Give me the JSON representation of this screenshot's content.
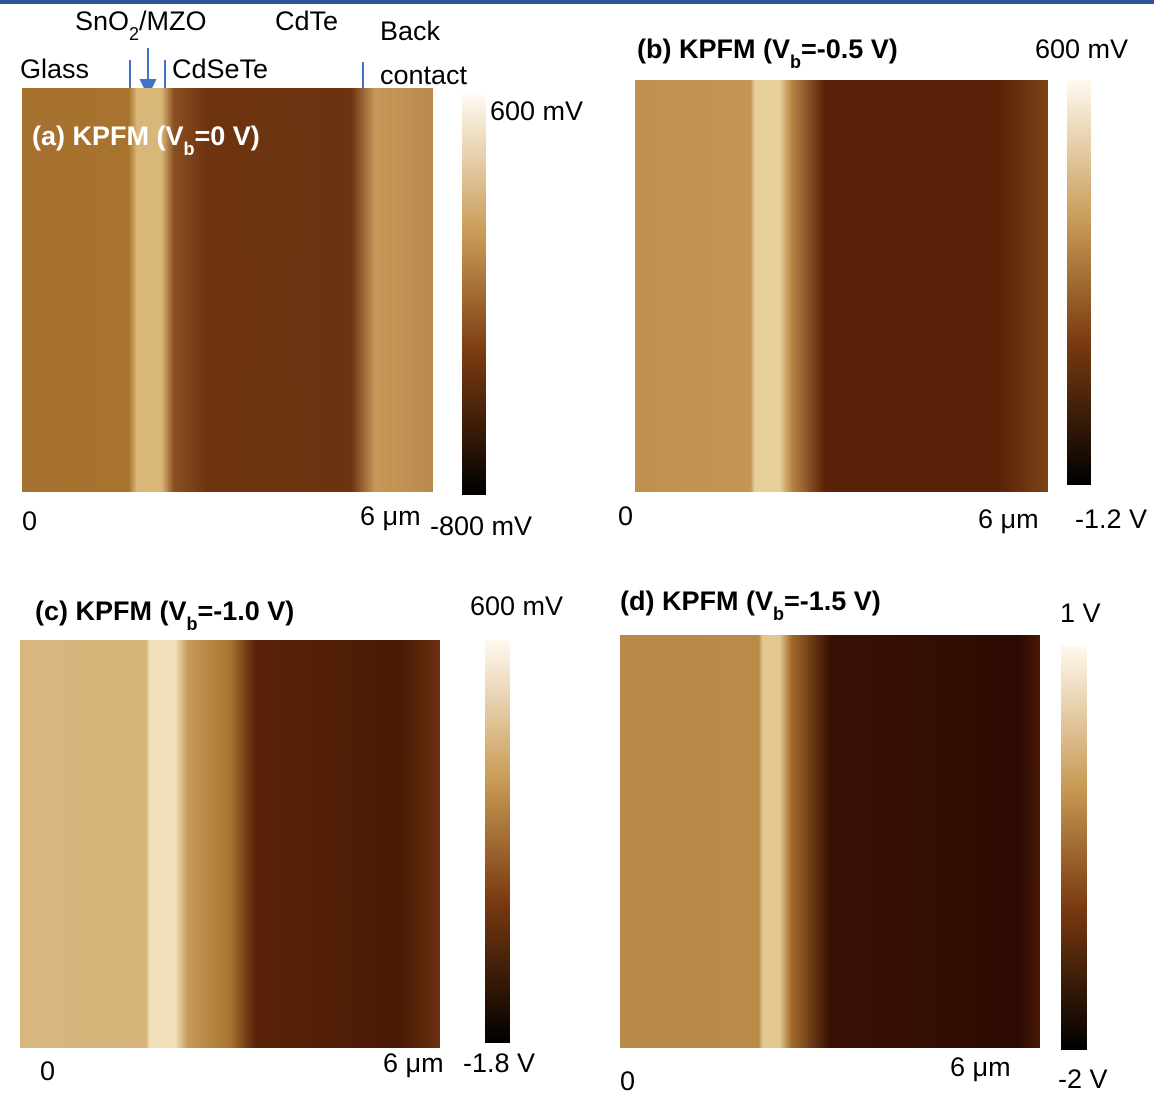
{
  "layers": {
    "sno2_prefix": "SnO",
    "sno2_sub": "2",
    "sno2_suffix": "/MZO",
    "cdte": "CdTe",
    "back": "Back",
    "contact": "contact",
    "glass": "Glass",
    "cdsete": "CdSeTe"
  },
  "panels": [
    {
      "title_prefix": "(a) KPFM (V",
      "title_sub": "b",
      "title_suffix": "=0 V)",
      "scale_max": "600 mV",
      "scale_min": "-800 mV",
      "x_start": "0",
      "x_end": "6 μm"
    },
    {
      "title_prefix": "(b) KPFM (V",
      "title_sub": "b",
      "title_suffix": "=-0.5 V)",
      "scale_max": "600 mV",
      "scale_min": "-1.2 V",
      "x_start": "0",
      "x_end": "6 μm"
    },
    {
      "title_prefix": "(c) KPFM (V",
      "title_sub": "b",
      "title_suffix": "=-1.0 V)",
      "scale_max": "600 mV",
      "scale_min": "-1.8 V",
      "x_start": "0",
      "x_end": "6 μm"
    },
    {
      "title_prefix": "(d) KPFM (V",
      "title_sub": "b",
      "title_suffix": "=-1.5 V)",
      "scale_max": "1 V",
      "scale_min": "-2 V",
      "x_start": "0",
      "x_end": "6 μm"
    }
  ]
}
